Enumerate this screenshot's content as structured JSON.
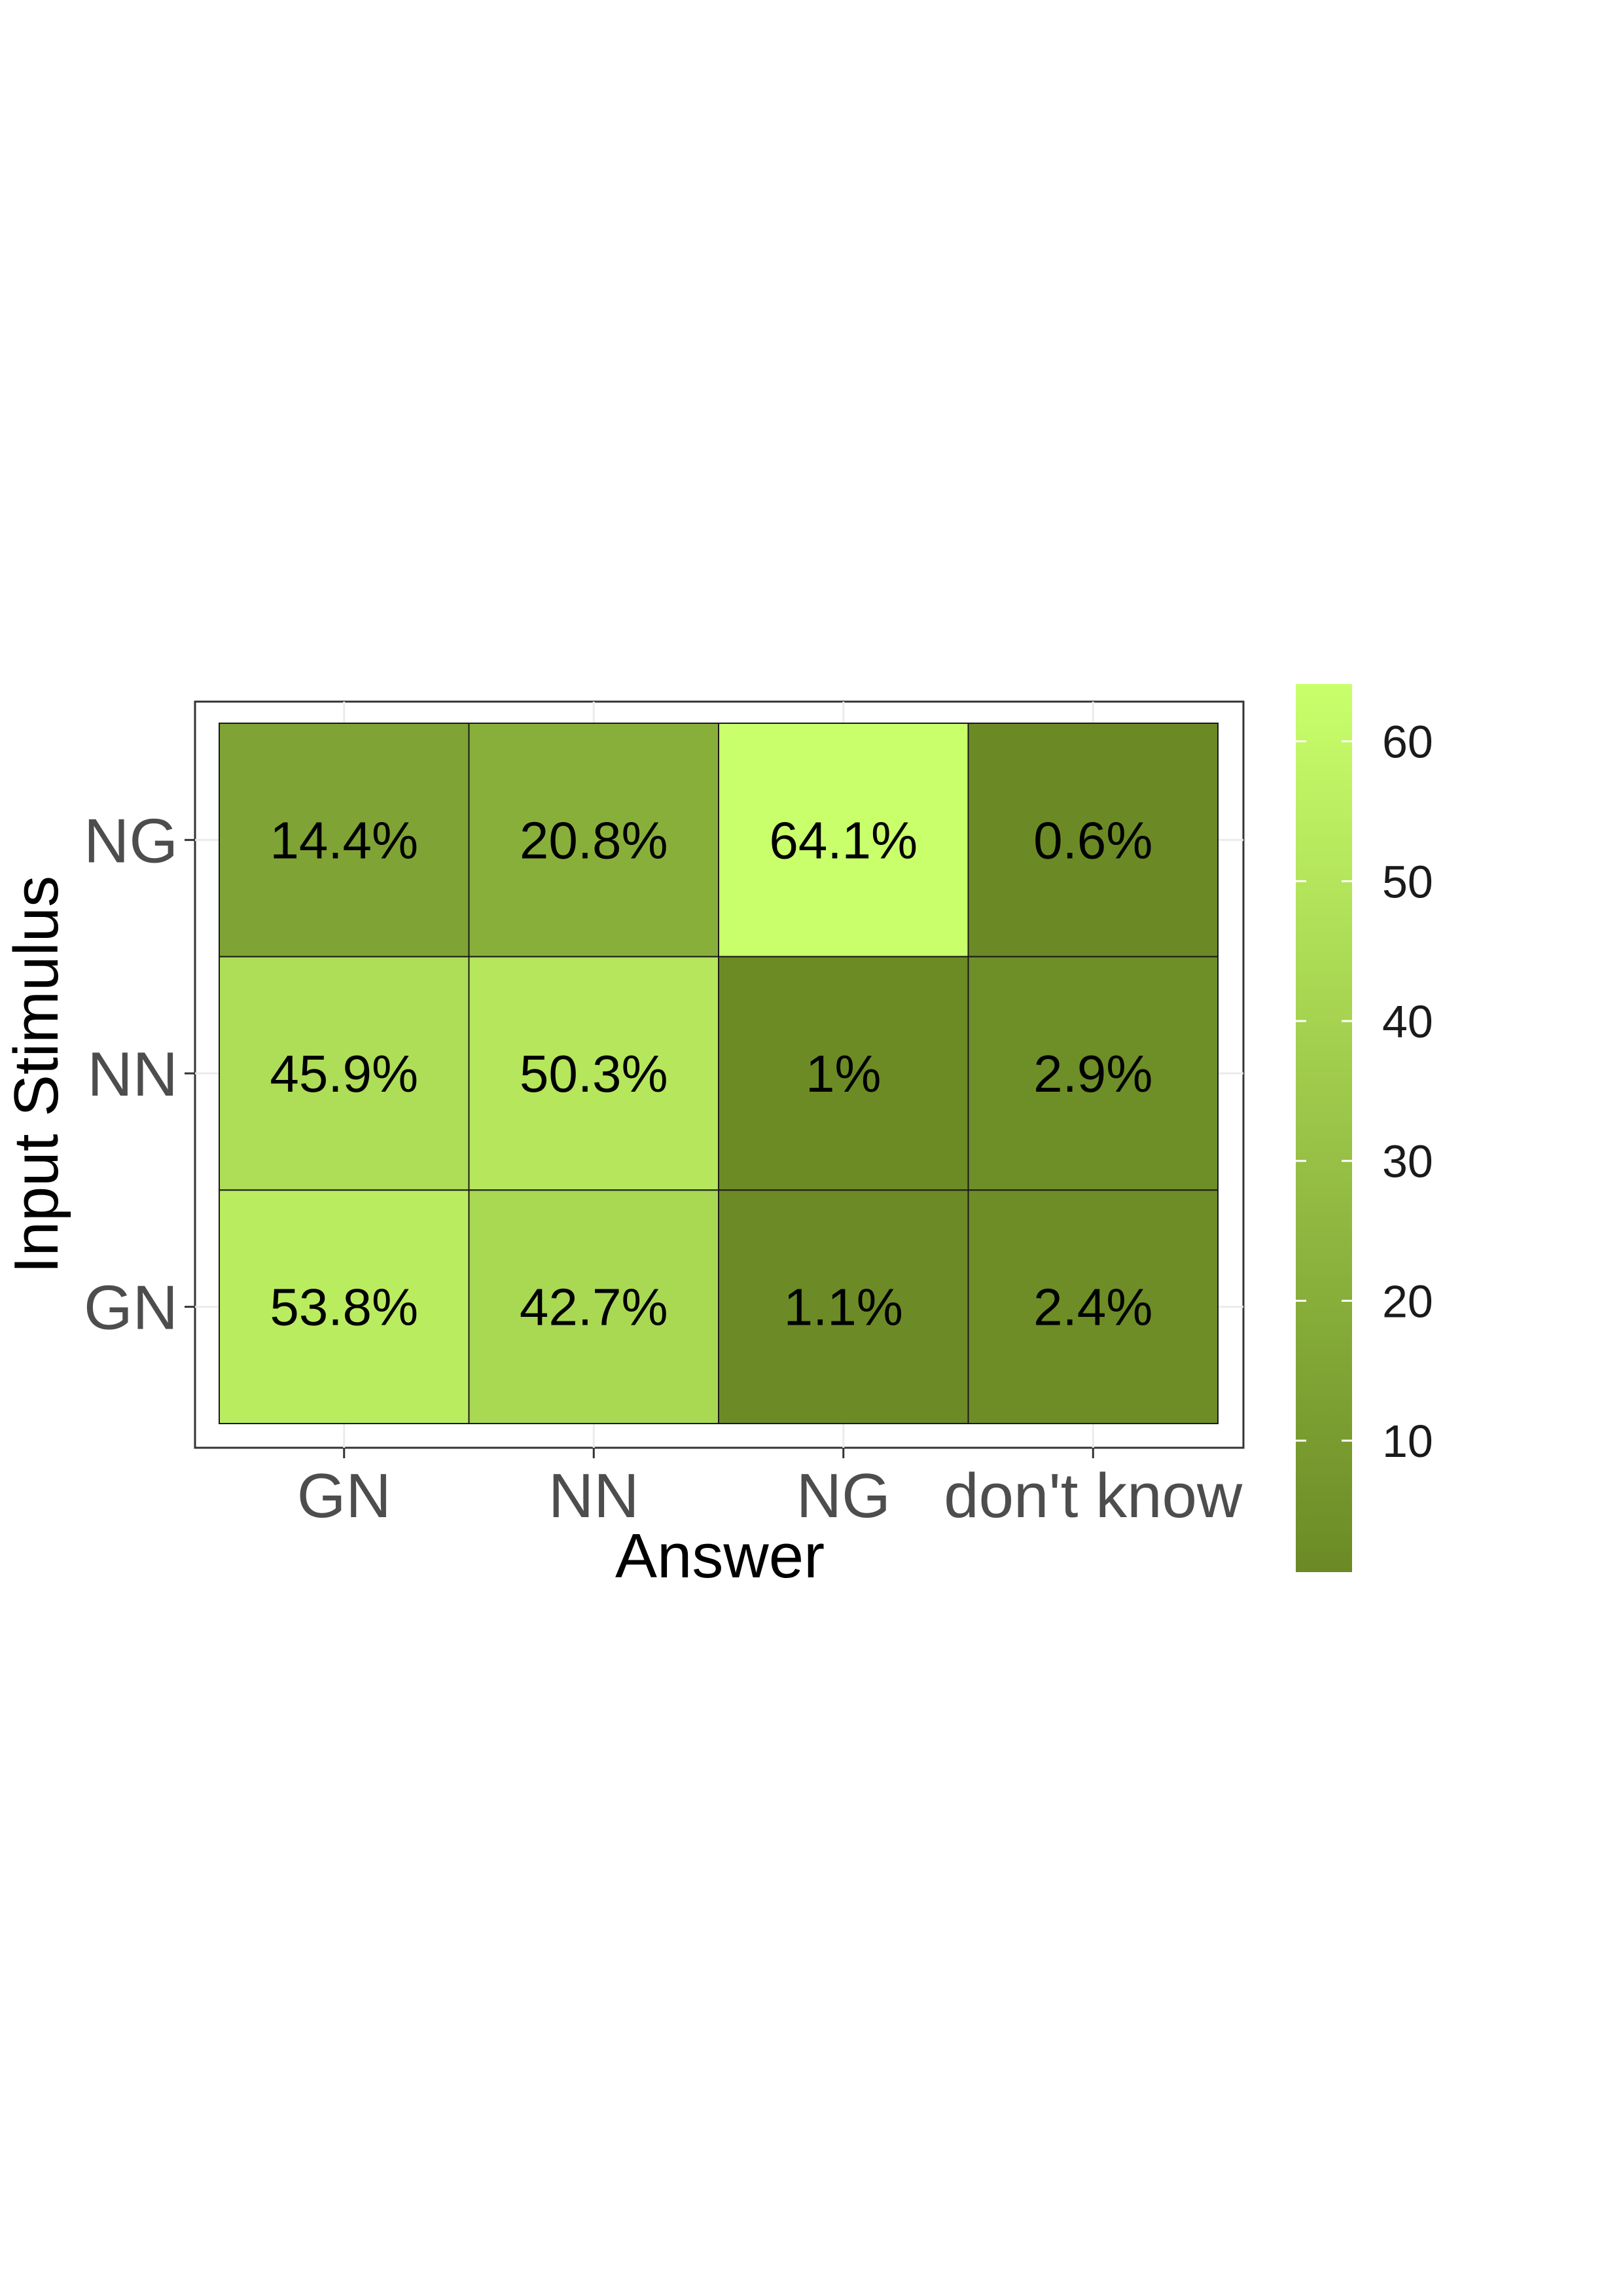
{
  "chart_data": {
    "type": "heatmap",
    "xlabel": "Answer",
    "ylabel": "Input Stimulus",
    "x_categories": [
      "GN",
      "NN",
      "NG",
      "don't know"
    ],
    "y_categories": [
      "GN",
      "NN",
      "NG"
    ],
    "cells": [
      {
        "x": "GN",
        "y": "NG",
        "value": 14.4,
        "label": "14.4%"
      },
      {
        "x": "NN",
        "y": "NG",
        "value": 20.8,
        "label": "20.8%"
      },
      {
        "x": "NG",
        "y": "NG",
        "value": 64.1,
        "label": "64.1%"
      },
      {
        "x": "don't know",
        "y": "NG",
        "value": 0.6,
        "label": "0.6%"
      },
      {
        "x": "GN",
        "y": "NN",
        "value": 45.9,
        "label": "45.9%"
      },
      {
        "x": "NN",
        "y": "NN",
        "value": 50.3,
        "label": "50.3%"
      },
      {
        "x": "NG",
        "y": "NN",
        "value": 1,
        "label": "1%"
      },
      {
        "x": "don't know",
        "y": "NN",
        "value": 2.9,
        "label": "2.9%"
      },
      {
        "x": "GN",
        "y": "GN",
        "value": 53.8,
        "label": "53.8%"
      },
      {
        "x": "NN",
        "y": "GN",
        "value": 42.7,
        "label": "42.7%"
      },
      {
        "x": "NG",
        "y": "GN",
        "value": 1.1,
        "label": "1.1%"
      },
      {
        "x": "don't know",
        "y": "GN",
        "value": 2.4,
        "label": "2.4%"
      }
    ],
    "colorbar": {
      "min": 0.6,
      "max": 64.1,
      "ticks": [
        "10",
        "20",
        "30",
        "40",
        "50",
        "60"
      ],
      "low_color": "#6b8a25",
      "high_color": "#c9ff6b"
    },
    "legend_placement": "right",
    "grid": true
  }
}
